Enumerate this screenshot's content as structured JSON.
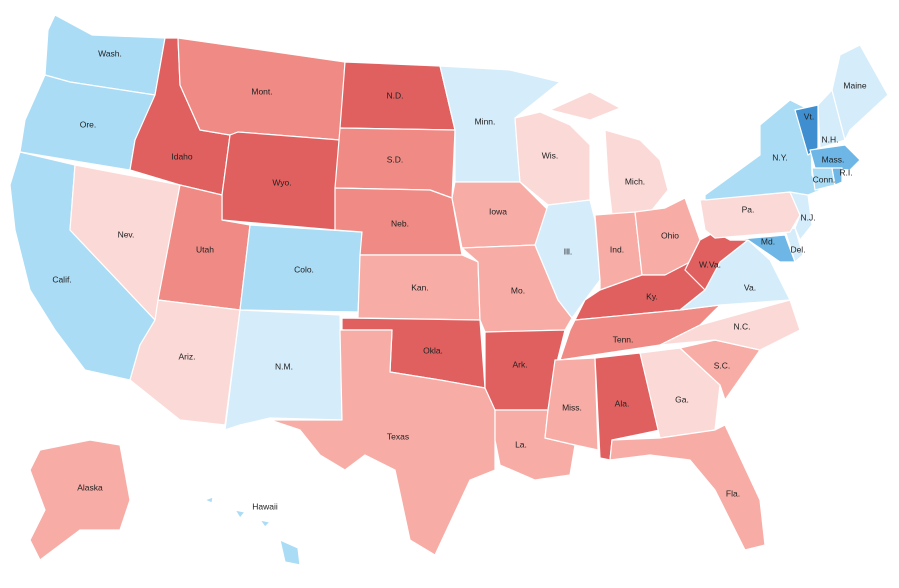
{
  "states": [
    {
      "label": "Wash.",
      "color": "#aadcf5"
    },
    {
      "label": "Ore.",
      "color": "#aadcf5"
    },
    {
      "label": "Calif.",
      "color": "#aadcf5"
    },
    {
      "label": "Nev.",
      "color": "#fbd9d7"
    },
    {
      "label": "Idaho",
      "color": "#e06060"
    },
    {
      "label": "Mont.",
      "color": "#ef8a84"
    },
    {
      "label": "Wyo.",
      "color": "#e06060"
    },
    {
      "label": "Utah",
      "color": "#ef8a84"
    },
    {
      "label": "Colo.",
      "color": "#aadcf5"
    },
    {
      "label": "Ariz.",
      "color": "#fbd9d7"
    },
    {
      "label": "N.M.",
      "color": "#d5ecfa"
    },
    {
      "label": "N.D.",
      "color": "#e06060"
    },
    {
      "label": "S.D.",
      "color": "#ef8a84"
    },
    {
      "label": "Neb.",
      "color": "#ef8a84"
    },
    {
      "label": "Kan.",
      "color": "#f8aca6"
    },
    {
      "label": "Okla.",
      "color": "#e06060"
    },
    {
      "label": "Texas",
      "color": "#f8aca6"
    },
    {
      "label": "Minn.",
      "color": "#d5ecfa"
    },
    {
      "label": "Iowa",
      "color": "#f8aca6"
    },
    {
      "label": "Mo.",
      "color": "#f8aca6"
    },
    {
      "label": "Ark.",
      "color": "#e06060"
    },
    {
      "label": "La.",
      "color": "#f8aca6"
    },
    {
      "label": "Wis.",
      "color": "#fbd9d7"
    },
    {
      "label": "Ill.",
      "color": "#d5ecfa"
    },
    {
      "label": "Mich.",
      "color": "#fbd9d7"
    },
    {
      "label": "Ind.",
      "color": "#f8aca6"
    },
    {
      "label": "Ohio",
      "color": "#f8aca6"
    },
    {
      "label": "Ky.",
      "color": "#e06060"
    },
    {
      "label": "Tenn.",
      "color": "#ef8a84"
    },
    {
      "label": "Miss.",
      "color": "#f8aca6"
    },
    {
      "label": "Ala.",
      "color": "#e06060"
    },
    {
      "label": "Ga.",
      "color": "#fbd9d7"
    },
    {
      "label": "Fla.",
      "color": "#f8aca6"
    },
    {
      "label": "S.C.",
      "color": "#f8aca6"
    },
    {
      "label": "N.C.",
      "color": "#fbd9d7"
    },
    {
      "label": "Va.",
      "color": "#d5ecfa"
    },
    {
      "label": "W.Va.",
      "color": "#e06060"
    },
    {
      "label": "Md.",
      "color": "#6db6e6"
    },
    {
      "label": "Del.",
      "color": "#d5ecfa"
    },
    {
      "label": "Pa.",
      "color": "#fbd9d7"
    },
    {
      "label": "N.J.",
      "color": "#d5ecfa"
    },
    {
      "label": "N.Y.",
      "color": "#aadcf5"
    },
    {
      "label": "Vt.",
      "color": "#3f8fd0"
    },
    {
      "label": "N.H.",
      "color": "#d5ecfa"
    },
    {
      "label": "Maine",
      "color": "#d5ecfa"
    },
    {
      "label": "Mass.",
      "color": "#6db6e6"
    },
    {
      "label": "Conn.",
      "color": "#aadcf5"
    },
    {
      "label": "R.I.",
      "color": "#6db6e6"
    },
    {
      "label": "Alaska",
      "color": "#f8aca6"
    },
    {
      "label": "Hawaii",
      "color": "#aadcf5"
    }
  ]
}
